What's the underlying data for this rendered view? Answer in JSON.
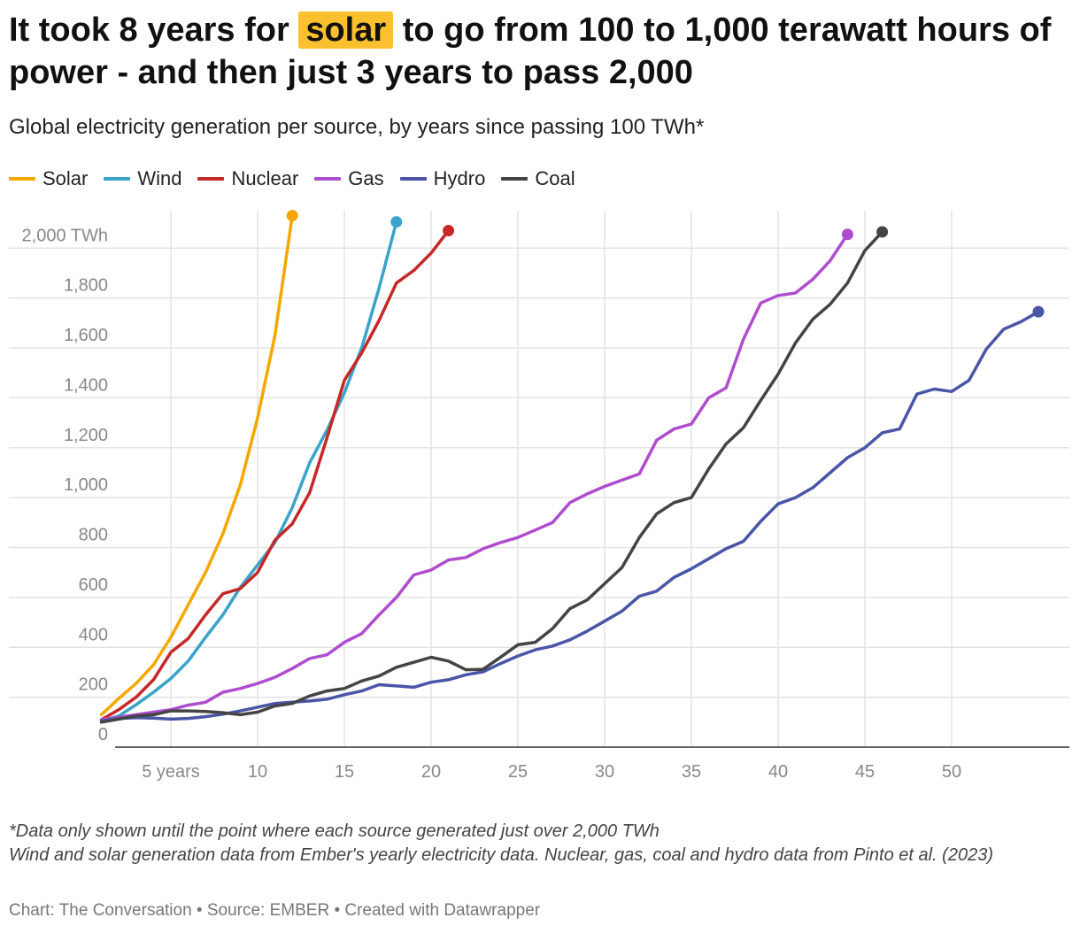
{
  "title": {
    "before": "It took 8 years for",
    "highlight": "solar",
    "after": "to go from 100 to 1,000 terawatt hours of power - and then just 3 years to pass 2,000",
    "highlight_color": "#fbc02d"
  },
  "subtitle": "Global electricity generation per source, by years since passing 100 TWh*",
  "notes": [
    "*Data only shown until the point where each source generated just over 2,000 TWh",
    "Wind and solar generation data from Ember's yearly electricity data. Nuclear, gas, coal and hydro data from Pinto et al. (2023)"
  ],
  "footer": "Chart: The Conversation • Source: EMBER • Created with Datawrapper",
  "chart_data": {
    "type": "line",
    "x_tick_values": [
      5,
      10,
      15,
      20,
      25,
      30,
      35,
      40,
      45,
      50
    ],
    "x_tick_labels": [
      "5 years",
      "10",
      "15",
      "20",
      "25",
      "30",
      "35",
      "40",
      "45",
      "50"
    ],
    "xlim": [
      0,
      55
    ],
    "y_tick_values": [
      0,
      200,
      400,
      600,
      800,
      1000,
      1200,
      1400,
      1600,
      1800,
      2000
    ],
    "y_tick_labels": [
      "0",
      "200",
      "400",
      "600",
      "800",
      "1,000",
      "1,200",
      "1,400",
      "1,600",
      "1,800",
      "2,000 TWh"
    ],
    "ylim": [
      0,
      2150
    ],
    "grid": true,
    "legend_position": "top-left",
    "series": [
      {
        "name": "Solar",
        "color": "#f5a700",
        "x_start": 1,
        "values": [
          130,
          195,
          255,
          330,
          440,
          570,
          700,
          855,
          1050,
          1320,
          1650,
          2130
        ]
      },
      {
        "name": "Wind",
        "color": "#3aa3c9",
        "x_start": 1,
        "values": [
          105,
          125,
          170,
          220,
          275,
          345,
          440,
          530,
          640,
          730,
          820,
          960,
          1140,
          1270,
          1420,
          1600,
          1840,
          2105
        ]
      },
      {
        "name": "Nuclear",
        "color": "#c62828",
        "x_start": 1,
        "values": [
          110,
          150,
          200,
          270,
          380,
          435,
          530,
          615,
          635,
          700,
          830,
          895,
          1020,
          1240,
          1470,
          1580,
          1710,
          1860,
          1910,
          1980,
          2070
        ]
      },
      {
        "name": "Gas",
        "color": "#b04ccf",
        "x_start": 1,
        "values": [
          110,
          120,
          130,
          140,
          150,
          168,
          180,
          220,
          235,
          255,
          280,
          315,
          355,
          370,
          420,
          455,
          530,
          600,
          690,
          710,
          750,
          760,
          795,
          820,
          840,
          870,
          900,
          980,
          1015,
          1045,
          1070,
          1095,
          1230,
          1275,
          1295,
          1400,
          1440,
          1635,
          1780,
          1810,
          1820,
          1875,
          1950,
          2055
        ]
      },
      {
        "name": "Hydro",
        "color": "#4a55a8",
        "x_start": 1,
        "values": [
          105,
          115,
          118,
          116,
          112,
          115,
          122,
          132,
          145,
          160,
          175,
          180,
          185,
          192,
          210,
          225,
          250,
          245,
          240,
          260,
          270,
          290,
          302,
          335,
          365,
          390,
          405,
          430,
          465,
          505,
          545,
          605,
          625,
          680,
          715,
          755,
          795,
          825,
          905,
          975,
          1000,
          1040,
          1100,
          1160,
          1200,
          1260,
          1275,
          1415,
          1435,
          1425,
          1470,
          1595,
          1675,
          1705,
          1745
        ]
      },
      {
        "name": "Coal",
        "color": "#444444",
        "x_start": 1,
        "values": [
          100,
          112,
          125,
          130,
          145,
          145,
          143,
          138,
          130,
          140,
          165,
          175,
          205,
          225,
          235,
          265,
          285,
          320,
          340,
          360,
          345,
          310,
          312,
          360,
          410,
          420,
          475,
          555,
          590,
          655,
          720,
          840,
          935,
          980,
          1000,
          1115,
          1215,
          1280,
          1390,
          1495,
          1620,
          1715,
          1775,
          1860,
          1990,
          2065
        ]
      }
    ]
  }
}
